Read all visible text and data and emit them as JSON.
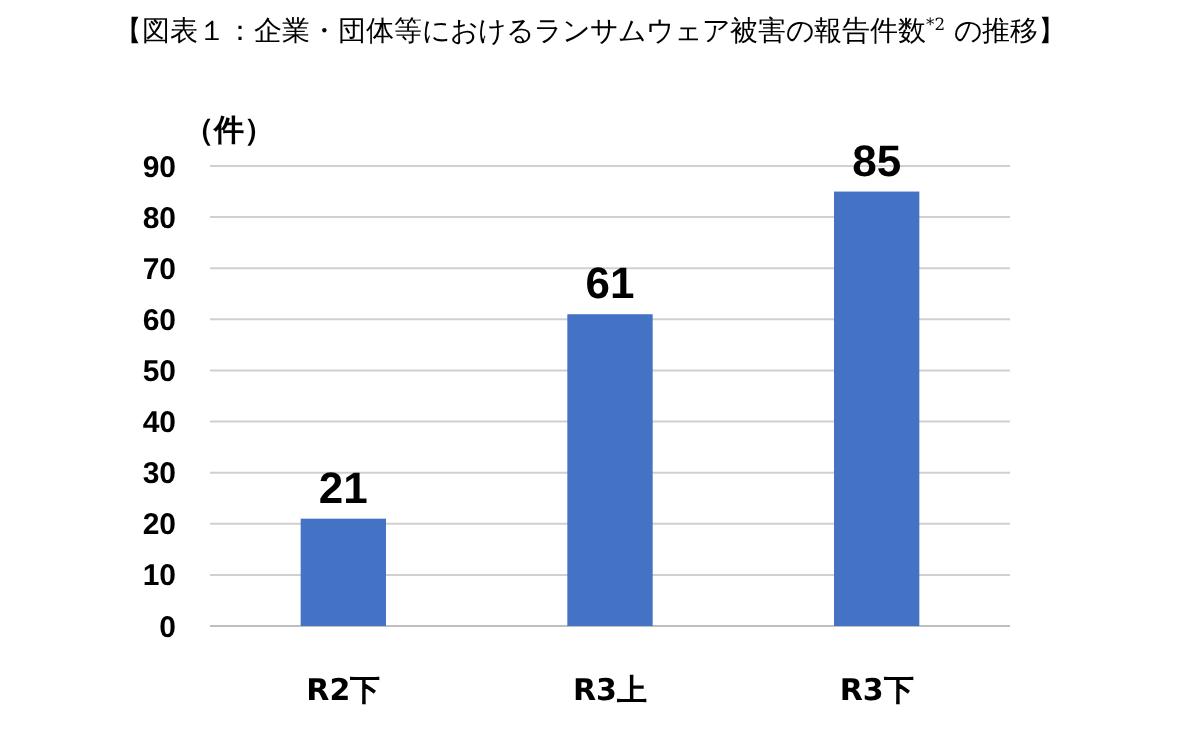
{
  "chart_data": {
    "type": "bar",
    "title": "【図表１：企業・団体等におけるランサムウェア被害の報告件数$^{*2}$ の推移】",
    "ylabel": "（件）",
    "categories": [
      "R2下",
      "R3上",
      "R3下"
    ],
    "values": [
      21,
      61,
      85
    ],
    "color": "#4472c4",
    "ylim": [
      0,
      90
    ],
    "yticks": [
      0,
      10,
      20,
      30,
      40,
      50,
      60,
      70,
      80,
      90
    ],
    "grid": "y",
    "data_labels": true
  }
}
